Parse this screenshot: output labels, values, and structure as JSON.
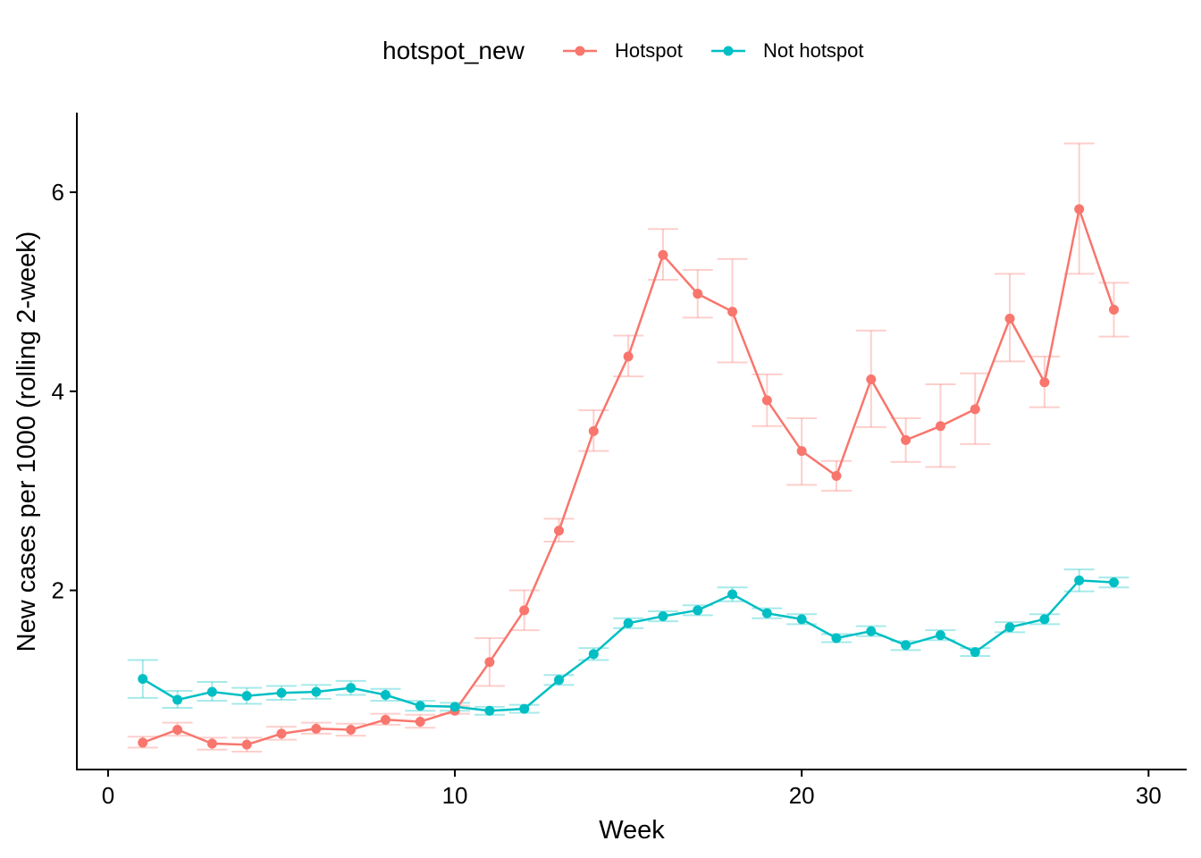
{
  "chart_data": {
    "type": "line",
    "xlabel": "Week",
    "ylabel": "New cases per 1000 (rolling 2-week)",
    "xlim": [
      -0.9,
      31.1
    ],
    "ylim": [
      0.2,
      6.8
    ],
    "xticks": [
      0,
      10,
      20,
      30
    ],
    "yticks": [
      2,
      4,
      6
    ],
    "grid": false,
    "legend": {
      "title": "hotspot_new",
      "position": "top"
    },
    "x": [
      1,
      2,
      3,
      4,
      5,
      6,
      7,
      8,
      9,
      10,
      11,
      12,
      13,
      14,
      15,
      16,
      17,
      18,
      19,
      20,
      21,
      22,
      23,
      24,
      25,
      26,
      27,
      28,
      29
    ],
    "series": [
      {
        "name": "Hotspot",
        "color": "#F8766D",
        "values": [
          0.47,
          0.6,
          0.46,
          0.45,
          0.56,
          0.61,
          0.6,
          0.7,
          0.68,
          0.79,
          1.28,
          1.8,
          2.6,
          3.6,
          4.35,
          5.37,
          4.98,
          4.8,
          3.91,
          3.4,
          3.15,
          4.12,
          3.51,
          3.65,
          3.82,
          4.73,
          4.09,
          5.83,
          4.82
        ],
        "lower": [
          0.42,
          0.54,
          0.4,
          0.38,
          0.5,
          0.56,
          0.54,
          0.65,
          0.62,
          0.76,
          1.04,
          1.6,
          2.49,
          3.4,
          4.15,
          5.12,
          4.74,
          4.29,
          3.65,
          3.06,
          3.0,
          3.64,
          3.29,
          3.24,
          3.47,
          4.3,
          3.84,
          5.18,
          4.55
        ],
        "upper": [
          0.53,
          0.67,
          0.52,
          0.52,
          0.63,
          0.67,
          0.66,
          0.76,
          0.75,
          0.84,
          1.52,
          2.0,
          2.72,
          3.81,
          4.56,
          5.63,
          5.22,
          5.33,
          4.17,
          3.73,
          3.3,
          4.61,
          3.73,
          4.07,
          4.18,
          5.18,
          4.35,
          6.49,
          5.09
        ]
      },
      {
        "name": "Not hotspot",
        "color": "#00BFC4",
        "values": [
          1.11,
          0.9,
          0.98,
          0.94,
          0.97,
          0.98,
          1.02,
          0.95,
          0.84,
          0.83,
          0.79,
          0.81,
          1.1,
          1.36,
          1.67,
          1.74,
          1.8,
          1.96,
          1.77,
          1.71,
          1.52,
          1.59,
          1.45,
          1.55,
          1.38,
          1.63,
          1.71,
          2.1,
          2.08
        ]
      }
    ],
    "not_hotspot_lower": [
      0.92,
      0.82,
      0.89,
      0.86,
      0.9,
      0.91,
      0.95,
      0.89,
      0.79,
      0.79,
      0.75,
      0.77,
      1.05,
      1.3,
      1.62,
      1.69,
      1.75,
      1.89,
      1.72,
      1.66,
      1.48,
      1.54,
      1.4,
      1.5,
      1.34,
      1.58,
      1.66,
      1.99,
      2.03
    ],
    "not_hotspot_upper": [
      1.3,
      0.99,
      1.08,
      1.02,
      1.04,
      1.05,
      1.09,
      1.01,
      0.89,
      0.87,
      0.83,
      0.85,
      1.15,
      1.42,
      1.72,
      1.79,
      1.85,
      2.03,
      1.82,
      1.76,
      1.56,
      1.64,
      1.49,
      1.6,
      1.42,
      1.68,
      1.76,
      2.21,
      2.13
    ]
  }
}
